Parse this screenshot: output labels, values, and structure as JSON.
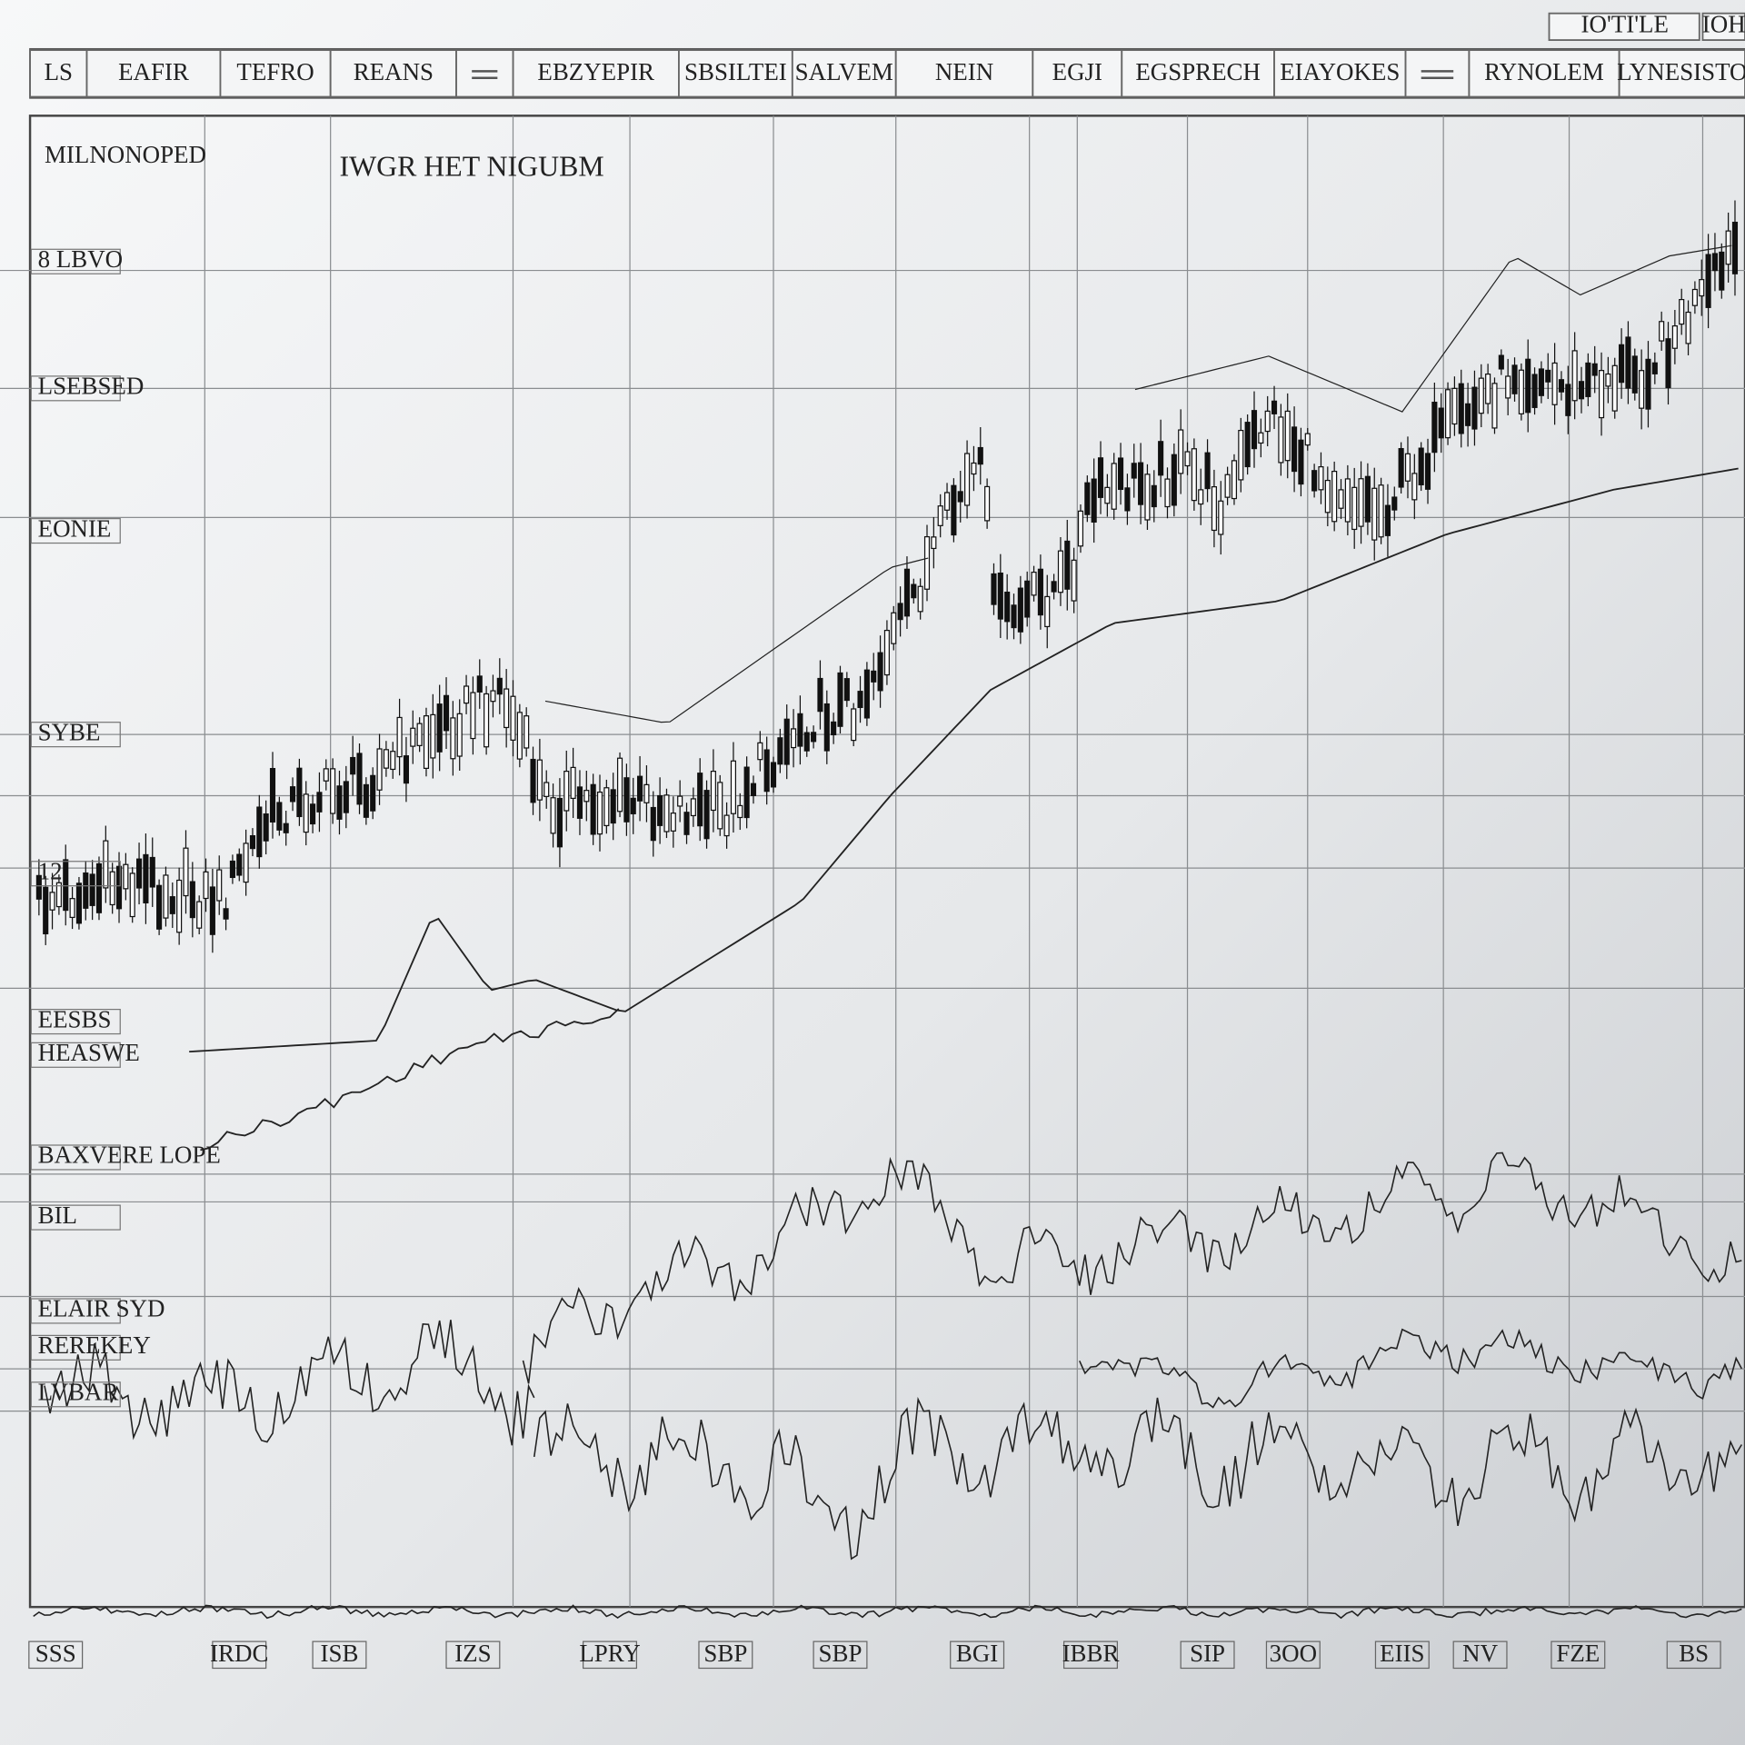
{
  "toolbar": {
    "buttons": [
      "LS",
      "EAFIR",
      "TEFRO",
      "REANS",
      "EBZYEPIR",
      "SBSILTEI",
      "SALVEM",
      "NEIN",
      "EGJI",
      "EGSPRECH",
      "EIAYOKES",
      "RYNOLEM",
      "LYNESISTO"
    ],
    "top_right": [
      "IO'TI'LE",
      "IOH"
    ]
  },
  "panel": {
    "label": "MILNONOPED",
    "title": "IWGR HET NIGUBM"
  },
  "y_axis_labels": [
    "8 LBVO",
    "LSEBSED",
    "EONIE",
    "SYBE",
    "12",
    "EESBS",
    "HEASWE",
    "BAXVERE LOPE",
    "BIL",
    "ELAIR SYD",
    "REREKEY",
    "LVBAR"
  ],
  "x_axis_labels": [
    "SSS",
    "IRDC",
    "ISB",
    "IZS",
    "LPRY",
    "SBP",
    "SBP",
    "BGI",
    "IBBR",
    "SIP",
    "3OO",
    "EIIS",
    "NV",
    "FZE",
    "BS"
  ]
}
